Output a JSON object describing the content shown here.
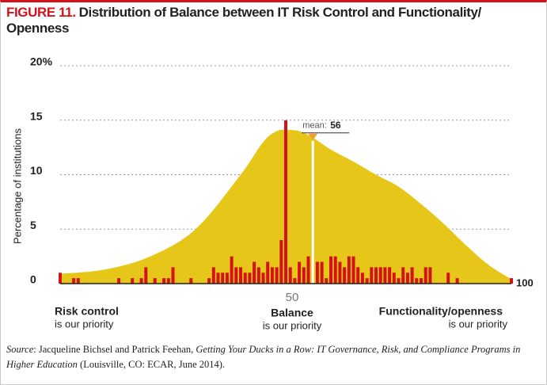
{
  "chart_data": {
    "type": "bar",
    "figure_label": "FIGURE 11.",
    "title": "Distribution of Balance between IT Risk Control and Functionality/ Openness",
    "y_label": "Percentage of institutions",
    "x": [
      0,
      1,
      2,
      3,
      4,
      5,
      6,
      7,
      8,
      9,
      10,
      11,
      12,
      13,
      14,
      15,
      16,
      17,
      18,
      19,
      20,
      21,
      22,
      23,
      24,
      25,
      26,
      27,
      28,
      29,
      30,
      31,
      32,
      33,
      34,
      35,
      36,
      37,
      38,
      39,
      40,
      41,
      42,
      43,
      44,
      45,
      46,
      47,
      48,
      49,
      50,
      51,
      52,
      53,
      54,
      55,
      56,
      57,
      58,
      59,
      60,
      61,
      62,
      63,
      64,
      65,
      66,
      67,
      68,
      69,
      70,
      71,
      72,
      73,
      74,
      75,
      76,
      77,
      78,
      79,
      80,
      81,
      82,
      83,
      84,
      85,
      86,
      87,
      88,
      89,
      90,
      91,
      92,
      93,
      94,
      95,
      96,
      97,
      98,
      99,
      100
    ],
    "values": [
      1,
      0,
      0,
      0.5,
      0.5,
      0,
      0,
      0,
      0,
      0,
      0,
      0,
      0,
      0.5,
      0,
      0,
      0.5,
      0,
      0.5,
      1.5,
      0,
      0.5,
      0,
      0.5,
      0.5,
      1.5,
      0,
      0,
      0,
      0.5,
      0,
      0,
      0,
      0.5,
      1.5,
      1,
      1,
      1,
      2.5,
      1.5,
      1.5,
      1,
      1,
      2,
      1.5,
      1,
      2,
      1.5,
      1.5,
      4,
      15,
      1.5,
      0.5,
      2,
      1.5,
      2.5,
      0,
      2,
      2,
      0.5,
      2.5,
      2.5,
      2,
      1.5,
      2.5,
      2.5,
      1.5,
      1,
      0.5,
      1.5,
      1.5,
      1.5,
      1.5,
      1.5,
      1,
      0.5,
      1.5,
      1,
      1.5,
      0.5,
      0.5,
      1.5,
      1.5,
      0,
      0,
      0,
      1,
      0,
      0.5,
      0,
      0,
      0,
      0,
      0,
      0,
      0,
      0,
      0,
      0,
      0,
      0.5
    ],
    "color": "#d4121a",
    "area": {
      "x": [
        0,
        10,
        20,
        30,
        40,
        45,
        48,
        50,
        53,
        56,
        60,
        65,
        70,
        75,
        80,
        85,
        90,
        95,
        100
      ],
      "values": [
        0.9,
        1.3,
        2.5,
        5,
        10,
        13,
        14,
        14.1,
        14,
        13.4,
        12.3,
        11.2,
        10,
        8.9,
        7.3,
        5.5,
        3.5,
        1.7,
        0.4
      ],
      "color": "#e6c619"
    },
    "mean": {
      "label": "mean:",
      "value": 56,
      "color": "#f0a030"
    },
    "xlim": [
      0,
      100
    ],
    "xticks": [
      50,
      100
    ],
    "ylim": [
      0,
      20
    ],
    "yticks": [
      0,
      5,
      10,
      15,
      {
        "value": 20,
        "label": "20%"
      }
    ],
    "grid": true,
    "x_end_labels": [
      {
        "title": "Risk control",
        "subtitle": "is our priority"
      },
      {
        "title": "Balance",
        "subtitle": "is our priority"
      },
      {
        "title": "Functionality/openness",
        "subtitle": "is our priority"
      }
    ],
    "source": {
      "label": "Source",
      "text": ": Jacqueline Bichsel and Patrick Feehan, ",
      "work": "Getting Your Ducks in a Row: IT Governance, Risk, and Compliance Programs in Higher Education",
      "tail": " (Louisville, CO: ECAR, June 2014)."
    }
  }
}
